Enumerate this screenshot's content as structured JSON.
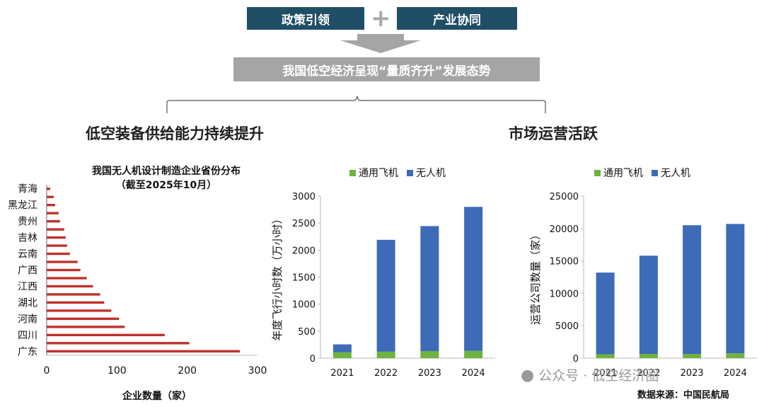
{
  "header": {
    "box_left": "政策引领",
    "plus": "+",
    "box_right": "产业协同",
    "banner": "我国低空经济呈现“量质齐升”发展态势"
  },
  "left_heading": "低空装备供给能力持续提升",
  "right_heading": "市场运营活跃",
  "chart_left": {
    "title_line1": "我国无人机设计制造企业省份分布",
    "title_line2": "（截至2025年10月）",
    "xlabel": "企业数量（家）"
  },
  "chart_data": [
    {
      "type": "bar",
      "orientation": "horizontal",
      "title": "我国无人机设计制造企业省份分布（截至2025年10月）",
      "xlabel": "企业数量（家）",
      "xlim": [
        0,
        300
      ],
      "xticks": [
        "0",
        "100",
        "200",
        "300"
      ],
      "bar_color": "#c0312b",
      "categories": [
        "广东",
        "",
        "四川",
        "",
        "河南",
        "",
        "湖北",
        "",
        "江西",
        "",
        "广西",
        "",
        "云南",
        "",
        "吉林",
        "",
        "贵州",
        "",
        "黑龙江",
        "",
        "青海"
      ],
      "labeled_categories": [
        "广东",
        "四川",
        "河南",
        "湖北",
        "江西",
        "广西",
        "云南",
        "吉林",
        "贵州",
        "黑龙江",
        "青海"
      ],
      "values": [
        275,
        203,
        168,
        111,
        103,
        92,
        82,
        76,
        66,
        57,
        48,
        44,
        33,
        29,
        27,
        25,
        19,
        17,
        12,
        10,
        5
      ]
    },
    {
      "type": "bar",
      "stacked": true,
      "ylabel": "年度飞行小时数（万小时）",
      "categories": [
        "2021",
        "2022",
        "2023",
        "2024"
      ],
      "ylim": [
        0,
        3000
      ],
      "yticks": [
        "0",
        "500",
        "1000",
        "1500",
        "2000",
        "2500",
        "3000"
      ],
      "legend_position": "top",
      "series": [
        {
          "name": "通用飞机",
          "color": "#6db33f",
          "values": [
            110,
            120,
            130,
            135
          ]
        },
        {
          "name": "无人机",
          "color": "#3d6bb8",
          "values": [
            145,
            2070,
            2315,
            2665
          ]
        }
      ]
    },
    {
      "type": "bar",
      "stacked": true,
      "ylabel": "运营公司数量（家）",
      "categories": [
        "2021",
        "2022",
        "2023",
        "2024"
      ],
      "ylim": [
        0,
        25000
      ],
      "yticks": [
        "0",
        "5000",
        "10000",
        "15000",
        "20000",
        "25000"
      ],
      "legend_position": "top",
      "series": [
        {
          "name": "通用飞机",
          "color": "#6db33f",
          "values": [
            600,
            650,
            650,
            750
          ]
        },
        {
          "name": "无人机",
          "color": "#3d6bb8",
          "values": [
            12600,
            15150,
            19850,
            19950
          ]
        }
      ]
    }
  ],
  "watermark": "公众号 · 低空经济圈",
  "source": "数据来源：中国民航局"
}
